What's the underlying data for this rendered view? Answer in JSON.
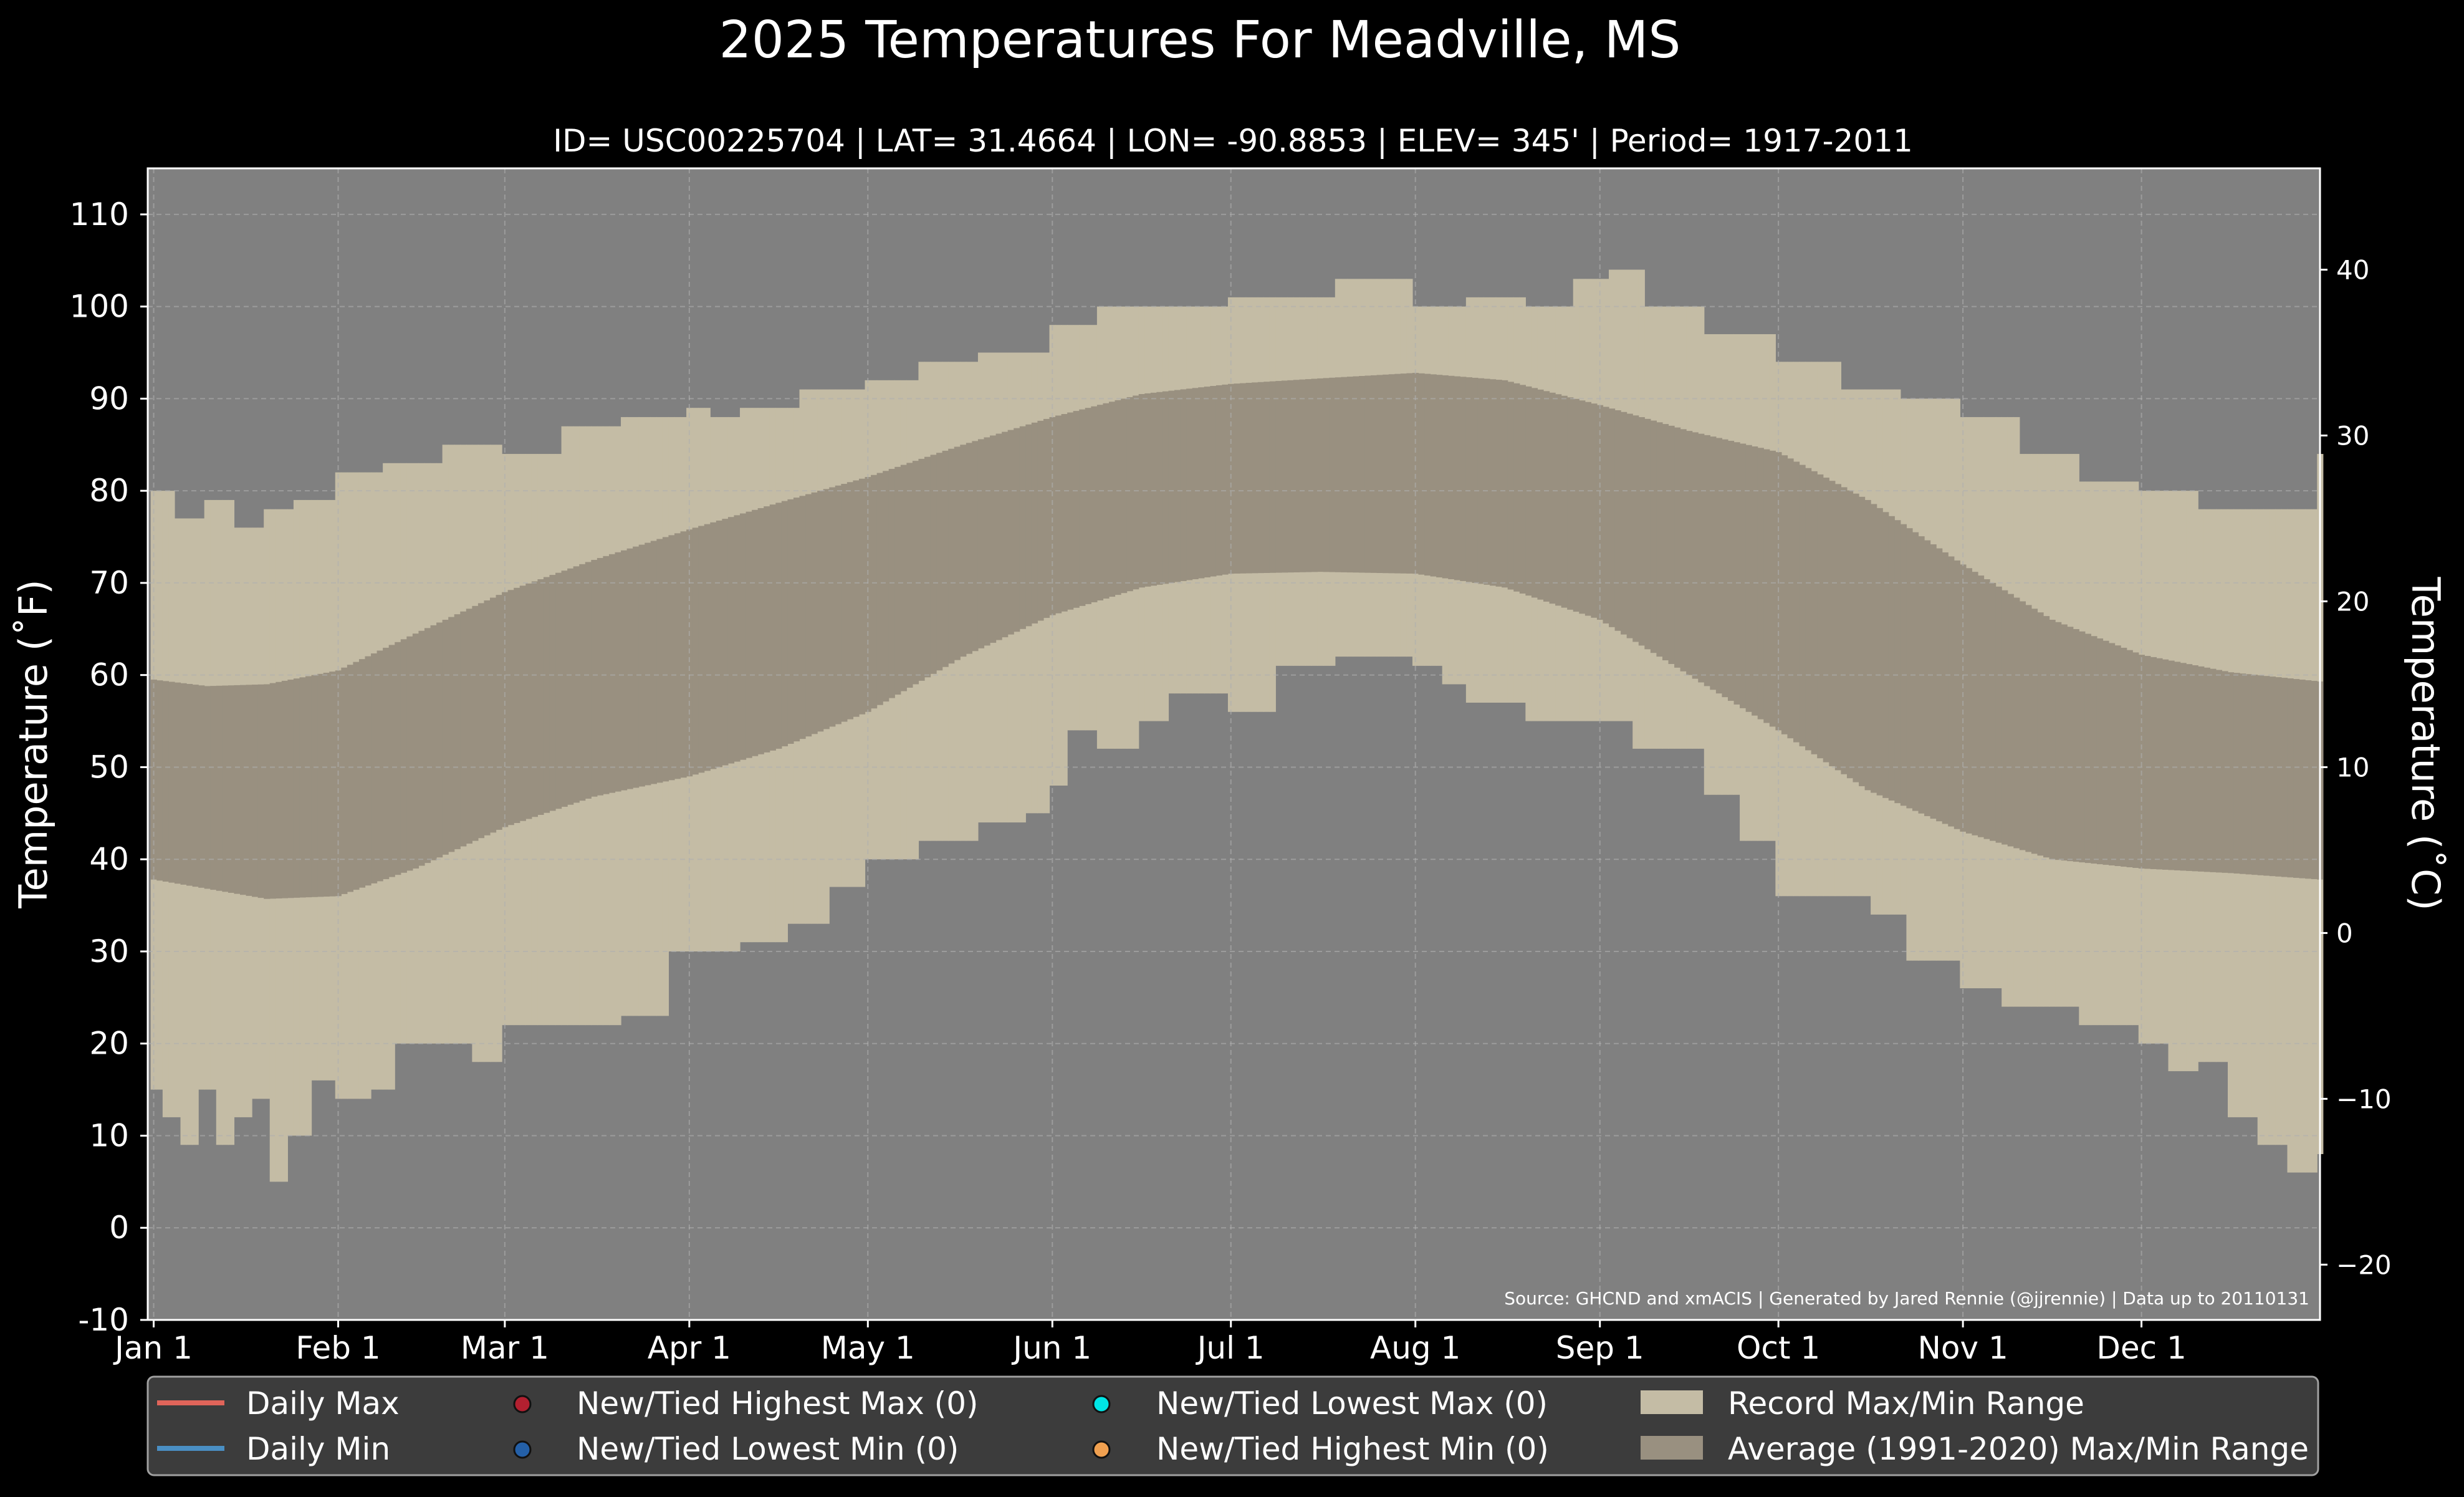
{
  "colors": {
    "background": "#000000",
    "plot_bg": "#808080",
    "record_band": "#c4bca5",
    "normal_band": "#999080",
    "grid": "#b0b0b0",
    "daily_max": "#e0645a",
    "daily_min": "#4a8fc4",
    "highest_max": "#b22030",
    "lowest_min": "#2460a8",
    "lowest_max": "#00e5e5",
    "highest_min": "#f0a050",
    "legend_bg": "#3c3c3c"
  },
  "chart_data": {
    "type": "area",
    "title": "2025 Temperatures For Meadville, MS",
    "subtitle": "ID= USC00225704 | LAT= 31.4664 | LON= -90.8853 | ELEV= 345' | Period= 1917-2011",
    "ylabel_left": "Temperature ($^\\circ$F)",
    "ylabel_left_display": "Temperature (˚F)",
    "ylabel_right": "Temperature (˚C)",
    "source": "Source: GHCND and xmACIS | Generated by Jared Rennie (@jjrennie) | Data up to 20110131",
    "ylim_f": [
      -10,
      115
    ],
    "yticks_f": [
      -10,
      0,
      10,
      20,
      30,
      40,
      50,
      60,
      70,
      80,
      90,
      100,
      110
    ],
    "yticks_c": [
      -20,
      -10,
      0,
      10,
      20,
      30,
      40
    ],
    "xlim_days": [
      0,
      365
    ],
    "months": [
      {
        "label": "Jan 1",
        "day": 1
      },
      {
        "label": "Feb 1",
        "day": 32
      },
      {
        "label": "Mar 1",
        "day": 60
      },
      {
        "label": "Apr 1",
        "day": 91
      },
      {
        "label": "May 1",
        "day": 121
      },
      {
        "label": "Jun 1",
        "day": 152
      },
      {
        "label": "Jul 1",
        "day": 182
      },
      {
        "label": "Aug 1",
        "day": 213
      },
      {
        "label": "Sep 1",
        "day": 244
      },
      {
        "label": "Oct 1",
        "day": 274
      },
      {
        "label": "Nov 1",
        "day": 305
      },
      {
        "label": "Dec 1",
        "day": 335
      }
    ],
    "grid": true,
    "legend_position": "bottom",
    "record_max": [
      [
        1,
        80
      ],
      [
        5,
        77
      ],
      [
        10,
        79
      ],
      [
        15,
        76
      ],
      [
        20,
        78
      ],
      [
        25,
        79
      ],
      [
        32,
        82
      ],
      [
        40,
        83
      ],
      [
        50,
        85
      ],
      [
        60,
        84
      ],
      [
        70,
        87
      ],
      [
        80,
        88
      ],
      [
        91,
        89
      ],
      [
        95,
        88
      ],
      [
        100,
        89
      ],
      [
        110,
        91
      ],
      [
        121,
        92
      ],
      [
        130,
        94
      ],
      [
        140,
        95
      ],
      [
        152,
        98
      ],
      [
        160,
        100
      ],
      [
        170,
        100
      ],
      [
        182,
        101
      ],
      [
        190,
        101
      ],
      [
        200,
        103
      ],
      [
        213,
        100
      ],
      [
        222,
        101
      ],
      [
        232,
        100
      ],
      [
        240,
        103
      ],
      [
        246,
        104
      ],
      [
        252,
        100
      ],
      [
        262,
        97
      ],
      [
        274,
        94
      ],
      [
        285,
        91
      ],
      [
        295,
        90
      ],
      [
        305,
        88
      ],
      [
        315,
        84
      ],
      [
        325,
        81
      ],
      [
        335,
        80
      ],
      [
        345,
        78
      ],
      [
        355,
        78
      ],
      [
        365,
        84
      ]
    ],
    "record_min": [
      [
        1,
        15
      ],
      [
        3,
        12
      ],
      [
        6,
        9
      ],
      [
        9,
        15
      ],
      [
        12,
        9
      ],
      [
        15,
        12
      ],
      [
        18,
        14
      ],
      [
        21,
        5
      ],
      [
        24,
        10
      ],
      [
        28,
        16
      ],
      [
        32,
        14
      ],
      [
        38,
        15
      ],
      [
        42,
        20
      ],
      [
        48,
        20
      ],
      [
        55,
        18
      ],
      [
        60,
        22
      ],
      [
        70,
        22
      ],
      [
        80,
        23
      ],
      [
        88,
        30
      ],
      [
        95,
        30
      ],
      [
        100,
        31
      ],
      [
        108,
        33
      ],
      [
        115,
        37
      ],
      [
        121,
        40
      ],
      [
        130,
        42
      ],
      [
        140,
        44
      ],
      [
        148,
        45
      ],
      [
        152,
        48
      ],
      [
        155,
        54
      ],
      [
        160,
        52
      ],
      [
        167,
        55
      ],
      [
        172,
        58
      ],
      [
        182,
        56
      ],
      [
        190,
        61
      ],
      [
        200,
        62
      ],
      [
        207,
        62
      ],
      [
        213,
        61
      ],
      [
        218,
        59
      ],
      [
        222,
        57
      ],
      [
        227,
        57
      ],
      [
        232,
        55
      ],
      [
        240,
        55
      ],
      [
        250,
        52
      ],
      [
        262,
        47
      ],
      [
        268,
        42
      ],
      [
        274,
        36
      ],
      [
        280,
        36
      ],
      [
        290,
        34
      ],
      [
        296,
        29
      ],
      [
        305,
        26
      ],
      [
        312,
        24
      ],
      [
        320,
        24
      ],
      [
        325,
        22
      ],
      [
        335,
        20
      ],
      [
        340,
        17
      ],
      [
        345,
        18
      ],
      [
        350,
        12
      ],
      [
        355,
        9
      ],
      [
        360,
        6
      ],
      [
        365,
        8
      ]
    ],
    "normal_max": [
      [
        1,
        59.5
      ],
      [
        10,
        58.8
      ],
      [
        20,
        59
      ],
      [
        32,
        60.5
      ],
      [
        45,
        64.5
      ],
      [
        60,
        69
      ],
      [
        75,
        72.5
      ],
      [
        91,
        75.8
      ],
      [
        106,
        78.7
      ],
      [
        121,
        81.5
      ],
      [
        137,
        85
      ],
      [
        152,
        88
      ],
      [
        167,
        90.5
      ],
      [
        182,
        91.6
      ],
      [
        197,
        92.2
      ],
      [
        213,
        92.8
      ],
      [
        228,
        92
      ],
      [
        244,
        89.3
      ],
      [
        259,
        86.5
      ],
      [
        274,
        84.2
      ],
      [
        289,
        79
      ],
      [
        305,
        72
      ],
      [
        320,
        66
      ],
      [
        335,
        62.2
      ],
      [
        350,
        60.3
      ],
      [
        365,
        59.3
      ]
    ],
    "normal_min": [
      [
        1,
        37.8
      ],
      [
        10,
        36.8
      ],
      [
        20,
        35.7
      ],
      [
        32,
        36
      ],
      [
        45,
        39
      ],
      [
        60,
        43.5
      ],
      [
        75,
        46.8
      ],
      [
        91,
        49
      ],
      [
        106,
        52
      ],
      [
        121,
        56
      ],
      [
        137,
        62
      ],
      [
        152,
        66.5
      ],
      [
        167,
        69.5
      ],
      [
        182,
        71
      ],
      [
        197,
        71.2
      ],
      [
        213,
        71
      ],
      [
        228,
        69.5
      ],
      [
        244,
        66
      ],
      [
        259,
        60
      ],
      [
        274,
        54
      ],
      [
        289,
        47.5
      ],
      [
        305,
        43
      ],
      [
        320,
        40
      ],
      [
        335,
        39
      ],
      [
        350,
        38.5
      ],
      [
        365,
        37.8
      ]
    ],
    "series": [
      {
        "name": "Daily Max",
        "values": []
      },
      {
        "name": "Daily Min",
        "values": []
      },
      {
        "name": "New/Tied Highest Max (0)",
        "values": []
      },
      {
        "name": "New/Tied Lowest Min (0)",
        "values": []
      },
      {
        "name": "New/Tied Lowest Max (0)",
        "values": []
      },
      {
        "name": "New/Tied Highest Min (0)",
        "values": []
      },
      {
        "name": "Record Max/Min Range",
        "values": []
      },
      {
        "name": "Average (1991-2020) Max/Min Range",
        "values": []
      }
    ]
  },
  "legend": {
    "daily_max": "Daily Max",
    "daily_min": "Daily Min",
    "highest_max": "New/Tied Highest Max (0)",
    "lowest_min": "New/Tied Lowest Min (0)",
    "lowest_max": "New/Tied Lowest Max (0)",
    "highest_min": "New/Tied Highest Min (0)",
    "record_range": "Record Max/Min Range",
    "normal_range": "Average (1991-2020) Max/Min Range"
  }
}
